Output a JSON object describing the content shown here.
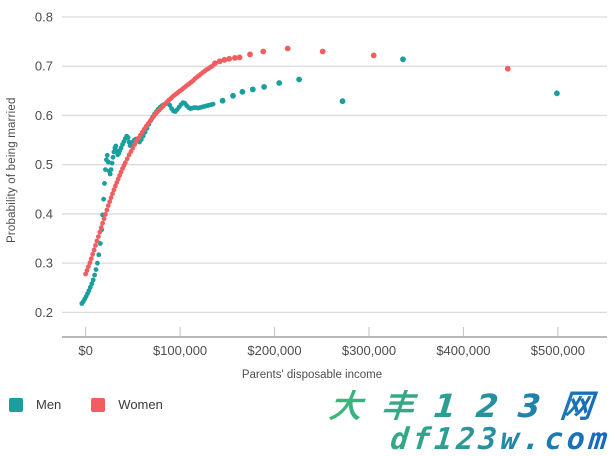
{
  "watermark": {
    "line1": "大丰123网",
    "line2": "df123w.com",
    "gradient_from": "#3cb878",
    "gradient_to": "#1565c0"
  },
  "chart_data": {
    "type": "scatter",
    "title": "",
    "xlabel": "Parents' disposable income",
    "ylabel": "Probability of being married",
    "xlim": [
      -25000,
      552000
    ],
    "ylim": [
      0.15,
      0.8
    ],
    "grid": "horizontal-only",
    "legend_position": "bottom-left",
    "x_ticks": [
      {
        "value": 0,
        "label": "$0"
      },
      {
        "value": 100000,
        "label": "$100,000"
      },
      {
        "value": 200000,
        "label": "$200,000"
      },
      {
        "value": 300000,
        "label": "$300,000"
      },
      {
        "value": 400000,
        "label": "$400,000"
      },
      {
        "value": 500000,
        "label": "$500,000"
      }
    ],
    "y_ticks": [
      {
        "value": 0.2,
        "label": "0.2"
      },
      {
        "value": 0.3,
        "label": "0.3"
      },
      {
        "value": 0.4,
        "label": "0.4"
      },
      {
        "value": 0.5,
        "label": "0.5"
      },
      {
        "value": 0.6,
        "label": "0.6"
      },
      {
        "value": 0.7,
        "label": "0.7"
      },
      {
        "value": 0.8,
        "label": "0.8"
      }
    ],
    "series": [
      {
        "name": "Men",
        "color": "#1a9e9e",
        "dense_points": [
          [
            -4000,
            0.218
          ],
          [
            -2500,
            0.222
          ],
          [
            -1000,
            0.227
          ],
          [
            500,
            0.232
          ],
          [
            2000,
            0.238
          ],
          [
            3500,
            0.244
          ],
          [
            5000,
            0.251
          ],
          [
            6500,
            0.258
          ],
          [
            8000,
            0.266
          ],
          [
            9500,
            0.276
          ],
          [
            11000,
            0.287
          ],
          [
            12500,
            0.3
          ],
          [
            14000,
            0.317
          ],
          [
            15500,
            0.34
          ],
          [
            17000,
            0.368
          ],
          [
            18000,
            0.398
          ],
          [
            19000,
            0.43
          ],
          [
            20000,
            0.462
          ],
          [
            21000,
            0.49
          ],
          [
            22000,
            0.51
          ],
          [
            23000,
            0.519
          ],
          [
            24000,
            0.505
          ],
          [
            25000,
            0.487
          ],
          [
            26000,
            0.481
          ],
          [
            27000,
            0.49
          ],
          [
            28000,
            0.503
          ],
          [
            29000,
            0.515
          ],
          [
            30000,
            0.526
          ],
          [
            31000,
            0.534
          ],
          [
            32000,
            0.538
          ],
          [
            33000,
            0.528
          ],
          [
            34000,
            0.52
          ],
          [
            35000,
            0.523
          ],
          [
            36000,
            0.528
          ],
          [
            37500,
            0.534
          ],
          [
            39000,
            0.541
          ],
          [
            40500,
            0.547
          ],
          [
            42000,
            0.553
          ],
          [
            43500,
            0.558
          ],
          [
            45000,
            0.555
          ],
          [
            46000,
            0.546
          ],
          [
            47000,
            0.539
          ],
          [
            48500,
            0.541
          ],
          [
            50000,
            0.546
          ],
          [
            51500,
            0.55
          ],
          [
            53000,
            0.552
          ],
          [
            55000,
            0.548
          ],
          [
            57000,
            0.546
          ],
          [
            59000,
            0.551
          ],
          [
            61000,
            0.558
          ],
          [
            63000,
            0.566
          ],
          [
            65000,
            0.574
          ],
          [
            67000,
            0.582
          ],
          [
            69000,
            0.59
          ],
          [
            71000,
            0.597
          ],
          [
            73000,
            0.603
          ],
          [
            75000,
            0.608
          ],
          [
            77000,
            0.613
          ],
          [
            79000,
            0.617
          ],
          [
            81000,
            0.62
          ],
          [
            83000,
            0.622
          ],
          [
            85000,
            0.624
          ],
          [
            87000,
            0.625
          ],
          [
            89000,
            0.621
          ],
          [
            91000,
            0.614
          ],
          [
            93000,
            0.609
          ],
          [
            95000,
            0.608
          ],
          [
            97000,
            0.612
          ],
          [
            99000,
            0.617
          ],
          [
            101000,
            0.622
          ],
          [
            103000,
            0.626
          ],
          [
            105000,
            0.625
          ],
          [
            107000,
            0.62
          ],
          [
            109000,
            0.616
          ],
          [
            111000,
            0.614
          ],
          [
            113000,
            0.615
          ],
          [
            115000,
            0.616
          ],
          [
            117000,
            0.616
          ],
          [
            119000,
            0.615
          ],
          [
            121000,
            0.616
          ],
          [
            123000,
            0.617
          ],
          [
            125000,
            0.618
          ],
          [
            127000,
            0.619
          ],
          [
            129000,
            0.62
          ],
          [
            131000,
            0.621
          ],
          [
            133000,
            0.622
          ],
          [
            135000,
            0.623
          ]
        ],
        "sparse_points": [
          [
            145000,
            0.63
          ],
          [
            156000,
            0.64
          ],
          [
            166000,
            0.648
          ],
          [
            177000,
            0.653
          ],
          [
            189000,
            0.658
          ],
          [
            205000,
            0.666
          ],
          [
            226000,
            0.673
          ],
          [
            272000,
            0.629
          ],
          [
            336000,
            0.714
          ],
          [
            499000,
            0.645
          ]
        ]
      },
      {
        "name": "Women",
        "color": "#f05e60",
        "dense_points": [
          [
            0,
            0.278
          ],
          [
            1500,
            0.285
          ],
          [
            3000,
            0.293
          ],
          [
            4500,
            0.301
          ],
          [
            6000,
            0.309
          ],
          [
            7500,
            0.318
          ],
          [
            9000,
            0.327
          ],
          [
            10500,
            0.336
          ],
          [
            12000,
            0.345
          ],
          [
            13500,
            0.354
          ],
          [
            15000,
            0.363
          ],
          [
            16500,
            0.372
          ],
          [
            18000,
            0.381
          ],
          [
            19500,
            0.39
          ],
          [
            21000,
            0.399
          ],
          [
            22500,
            0.408
          ],
          [
            24000,
            0.417
          ],
          [
            25500,
            0.425
          ],
          [
            27000,
            0.433
          ],
          [
            28500,
            0.441
          ],
          [
            30000,
            0.449
          ],
          [
            31500,
            0.457
          ],
          [
            33000,
            0.464
          ],
          [
            34500,
            0.471
          ],
          [
            36000,
            0.478
          ],
          [
            37500,
            0.485
          ],
          [
            39000,
            0.492
          ],
          [
            40500,
            0.498
          ],
          [
            42000,
            0.504
          ],
          [
            44000,
            0.512
          ],
          [
            46000,
            0.52
          ],
          [
            48000,
            0.527
          ],
          [
            50000,
            0.534
          ],
          [
            52000,
            0.541
          ],
          [
            54000,
            0.548
          ],
          [
            56000,
            0.554
          ],
          [
            58000,
            0.56
          ],
          [
            60000,
            0.566
          ],
          [
            62000,
            0.572
          ],
          [
            64000,
            0.578
          ],
          [
            66000,
            0.583
          ],
          [
            68000,
            0.588
          ],
          [
            70000,
            0.593
          ],
          [
            72000,
            0.598
          ],
          [
            74000,
            0.603
          ],
          [
            76000,
            0.607
          ],
          [
            78000,
            0.611
          ],
          [
            80000,
            0.615
          ],
          [
            82000,
            0.619
          ],
          [
            84000,
            0.623
          ],
          [
            86000,
            0.627
          ],
          [
            88000,
            0.631
          ],
          [
            90000,
            0.634
          ],
          [
            92000,
            0.638
          ],
          [
            94000,
            0.641
          ],
          [
            96000,
            0.644
          ],
          [
            98000,
            0.647
          ],
          [
            100000,
            0.65
          ],
          [
            102000,
            0.653
          ],
          [
            104000,
            0.656
          ],
          [
            106000,
            0.659
          ],
          [
            108000,
            0.662
          ],
          [
            110000,
            0.665
          ],
          [
            112000,
            0.668
          ],
          [
            114000,
            0.671
          ],
          [
            116000,
            0.675
          ],
          [
            118000,
            0.678
          ],
          [
            120000,
            0.681
          ],
          [
            122000,
            0.684
          ],
          [
            124000,
            0.687
          ],
          [
            126000,
            0.69
          ],
          [
            128000,
            0.693
          ],
          [
            130000,
            0.695
          ],
          [
            132000,
            0.698
          ],
          [
            134000,
            0.7
          ]
        ],
        "sparse_points": [
          [
            137000,
            0.706
          ],
          [
            142000,
            0.71
          ],
          [
            147000,
            0.713
          ],
          [
            152000,
            0.715
          ],
          [
            158000,
            0.717
          ],
          [
            163000,
            0.718
          ],
          [
            174000,
            0.724
          ],
          [
            188000,
            0.73
          ],
          [
            214000,
            0.736
          ],
          [
            251000,
            0.73
          ],
          [
            305000,
            0.722
          ],
          [
            447000,
            0.695
          ]
        ]
      }
    ]
  }
}
